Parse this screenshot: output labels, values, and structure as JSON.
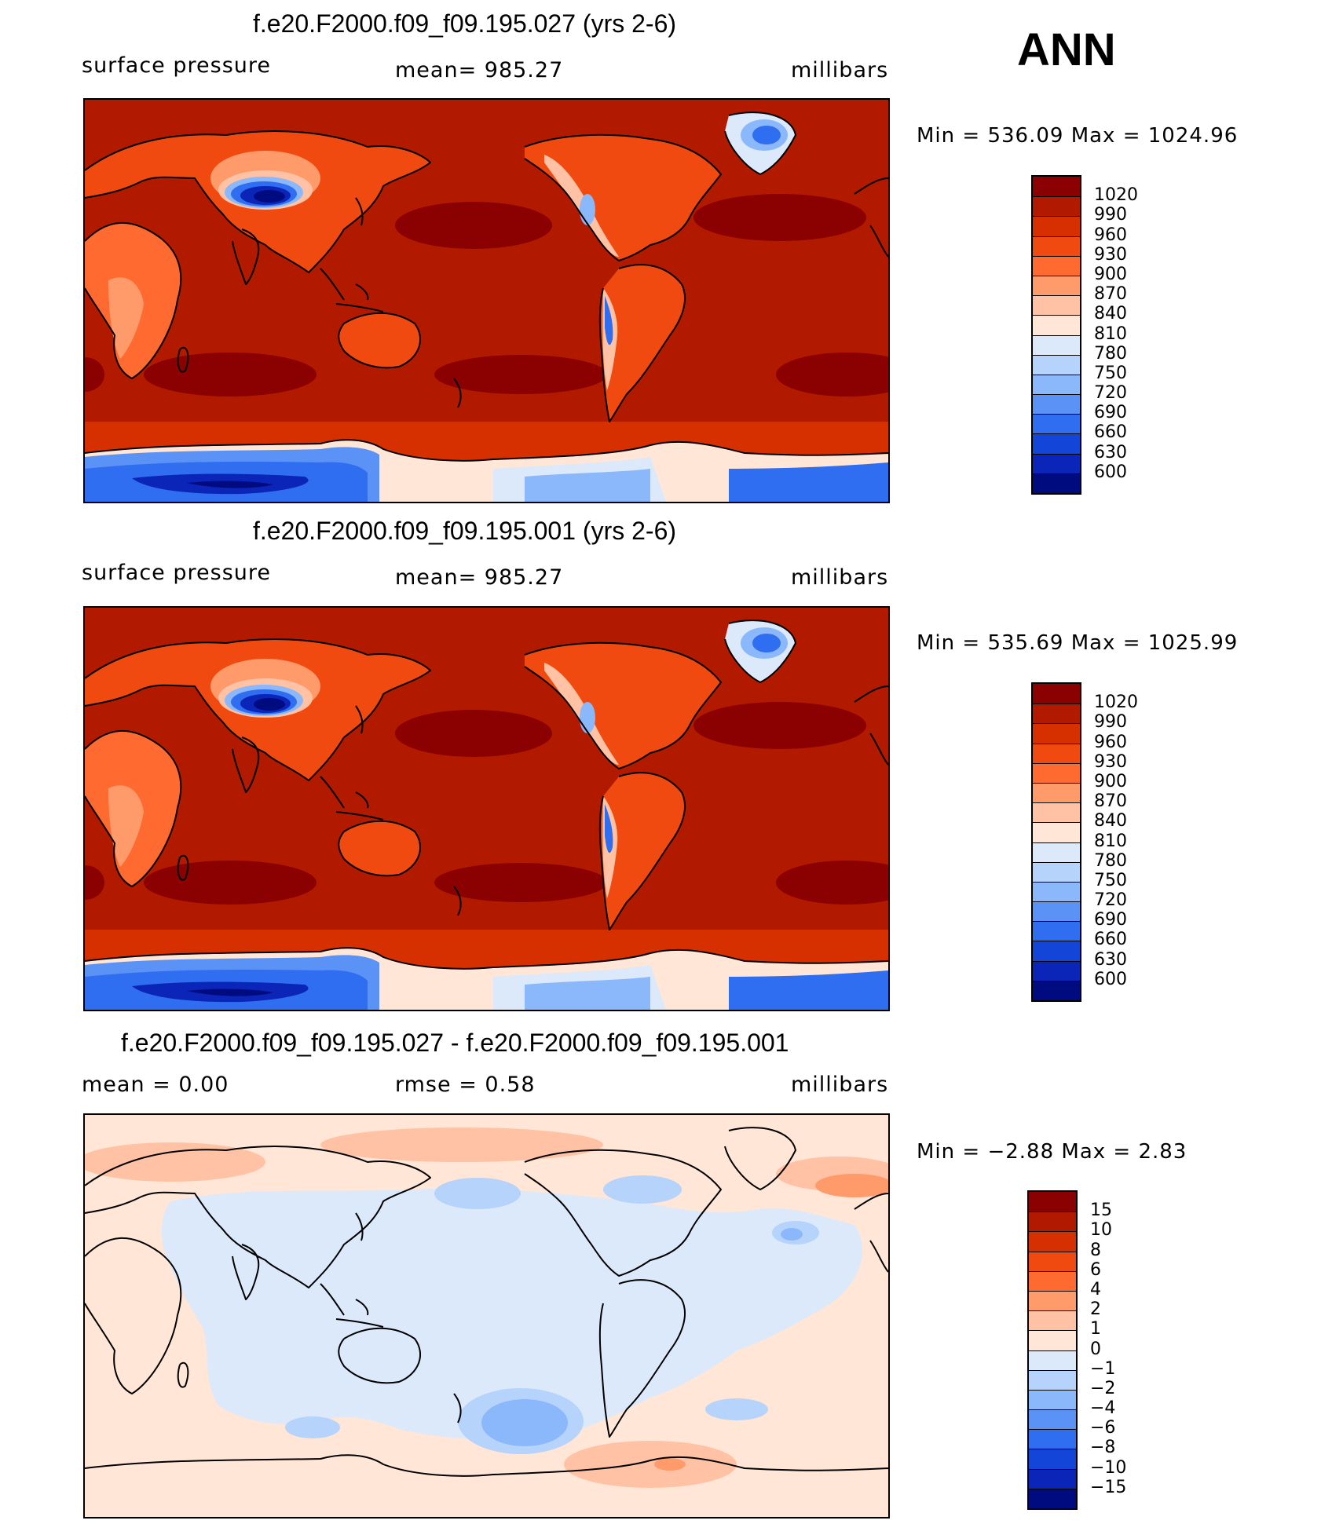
{
  "season": "ANN",
  "panels": [
    {
      "title": "f.e20.F2000.f09_f09.195.027 (yrs 2-6)",
      "left_label": "surface pressure",
      "center_label": "mean=  985.27",
      "units": "millibars",
      "minmax": "Min  =  536.09  Max  =  1024.96",
      "colorbar": {
        "levels": [
          "1020",
          "990",
          "960",
          "930",
          "900",
          "870",
          "840",
          "810",
          "780",
          "750",
          "720",
          "690",
          "660",
          "630",
          "600"
        ],
        "colors": [
          "#8b0000",
          "#b21a00",
          "#d73000",
          "#f04a10",
          "#ff6a30",
          "#ff9a6a",
          "#ffc2a4",
          "#ffe6d6",
          "#dbe9fb",
          "#b5d3fb",
          "#8ab8fb",
          "#5a92f6",
          "#2f6ef0",
          "#1346d8",
          "#0a25b8",
          "#000b80"
        ]
      },
      "map_style": "full"
    },
    {
      "title": "f.e20.F2000.f09_f09.195.001 (yrs 2-6)",
      "left_label": "surface pressure",
      "center_label": "mean=  985.27",
      "units": "millibars",
      "minmax": "Min  =  535.69  Max  =  1025.99",
      "colorbar": {
        "levels": [
          "1020",
          "990",
          "960",
          "930",
          "900",
          "870",
          "840",
          "810",
          "780",
          "750",
          "720",
          "690",
          "660",
          "630",
          "600"
        ],
        "colors": [
          "#8b0000",
          "#b21a00",
          "#d73000",
          "#f04a10",
          "#ff6a30",
          "#ff9a6a",
          "#ffc2a4",
          "#ffe6d6",
          "#dbe9fb",
          "#b5d3fb",
          "#8ab8fb",
          "#5a92f6",
          "#2f6ef0",
          "#1346d8",
          "#0a25b8",
          "#000b80"
        ]
      },
      "map_style": "full"
    },
    {
      "title": "f.e20.F2000.f09_f09.195.027 - f.e20.F2000.f09_f09.195.001",
      "left_label": "mean  =     0.00",
      "center_label": "rmse  =     0.58",
      "units": "millibars",
      "minmax": "Min  =    −2.88  Max  =     2.83",
      "colorbar": {
        "levels": [
          "15",
          "10",
          "8",
          "6",
          "4",
          "2",
          "1",
          "0",
          "−1",
          "−2",
          "−4",
          "−6",
          "−8",
          "−10",
          "−15"
        ],
        "colors": [
          "#8b0000",
          "#b21a00",
          "#d73000",
          "#f04a10",
          "#ff6a30",
          "#ff9a6a",
          "#ffc2a4",
          "#ffe6d6",
          "#dbe9fb",
          "#b5d3fb",
          "#8ab8fb",
          "#5a92f6",
          "#2f6ef0",
          "#1346d8",
          "#0a25b8",
          "#000b80"
        ]
      },
      "map_style": "diff"
    }
  ]
}
